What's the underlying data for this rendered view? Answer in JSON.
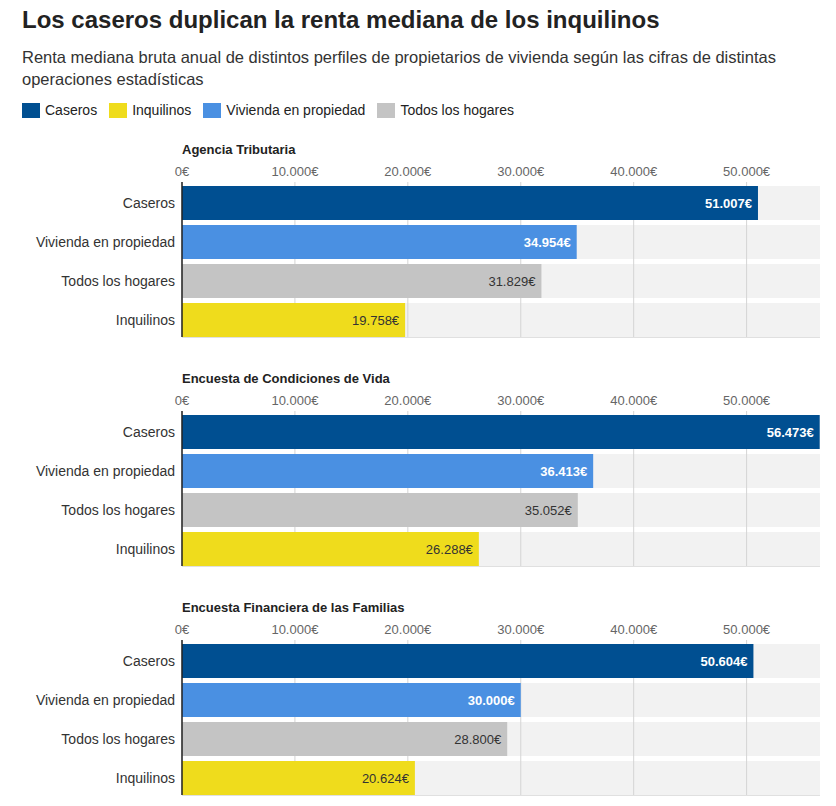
{
  "header": {
    "title": "Los caseros duplican la renta mediana de los inquilinos",
    "subtitle": "Renta mediana bruta anual de distintos perfiles de propietarios de vivienda según las cifras de distintas operaciones estadísticas",
    "legend": [
      {
        "name": "Caseros",
        "color": "#004f91"
      },
      {
        "name": "Inquilinos",
        "color": "#efdc1c"
      },
      {
        "name": "Vivienda en propiedad",
        "color": "#4a90e2"
      },
      {
        "name": "Todos los hogares",
        "color": "#c4c4c4"
      }
    ]
  },
  "chart_data": [
    {
      "type": "bar",
      "orientation": "horizontal",
      "title": "Agencia Tributaria",
      "categories": [
        "Caseros",
        "Vivienda en propiedad",
        "Todos los hogares",
        "Inquilinos"
      ],
      "values": [
        51007,
        34954,
        31829,
        19758
      ],
      "value_labels": [
        "51.007€",
        "34.954€",
        "31.829€",
        "19.758€"
      ],
      "colors": [
        "#004f91",
        "#4a90e2",
        "#c4c4c4",
        "#efdc1c"
      ],
      "xlim": [
        0,
        56500
      ],
      "xticks": [
        {
          "value": 0,
          "label": "0€"
        },
        {
          "value": 10000,
          "label": "10.000€"
        },
        {
          "value": 20000,
          "label": "20.000€"
        },
        {
          "value": 30000,
          "label": "30.000€"
        },
        {
          "value": 40000,
          "label": "40.000€"
        },
        {
          "value": 50000,
          "label": "50.000€"
        }
      ],
      "grid": true,
      "data_labels": true
    },
    {
      "type": "bar",
      "orientation": "horizontal",
      "title": "Encuesta de Condiciones de Vida",
      "categories": [
        "Caseros",
        "Vivienda en propiedad",
        "Todos los hogares",
        "Inquilinos"
      ],
      "values": [
        56473,
        36413,
        35052,
        26288
      ],
      "value_labels": [
        "56.473€",
        "36.413€",
        "35.052€",
        "26.288€"
      ],
      "colors": [
        "#004f91",
        "#4a90e2",
        "#c4c4c4",
        "#efdc1c"
      ],
      "xlim": [
        0,
        56500
      ],
      "xticks": [
        {
          "value": 0,
          "label": "0€"
        },
        {
          "value": 10000,
          "label": "10.000€"
        },
        {
          "value": 20000,
          "label": "20.000€"
        },
        {
          "value": 30000,
          "label": "30.000€"
        },
        {
          "value": 40000,
          "label": "40.000€"
        },
        {
          "value": 50000,
          "label": "50.000€"
        }
      ],
      "grid": true,
      "data_labels": true
    },
    {
      "type": "bar",
      "orientation": "horizontal",
      "title": "Encuesta Financiera de las Familias",
      "categories": [
        "Caseros",
        "Vivienda en propiedad",
        "Todos los hogares",
        "Inquilinos"
      ],
      "values": [
        50604,
        30000,
        28800,
        20624
      ],
      "value_labels": [
        "50.604€",
        "30.000€",
        "28.800€",
        "20.624€"
      ],
      "colors": [
        "#004f91",
        "#4a90e2",
        "#c4c4c4",
        "#efdc1c"
      ],
      "xlim": [
        0,
        56500
      ],
      "xticks": [
        {
          "value": 0,
          "label": "0€"
        },
        {
          "value": 10000,
          "label": "10.000€"
        },
        {
          "value": 20000,
          "label": "20.000€"
        },
        {
          "value": 30000,
          "label": "30.000€"
        },
        {
          "value": 40000,
          "label": "40.000€"
        },
        {
          "value": 50000,
          "label": "50.000€"
        }
      ],
      "grid": true,
      "data_labels": true
    }
  ]
}
